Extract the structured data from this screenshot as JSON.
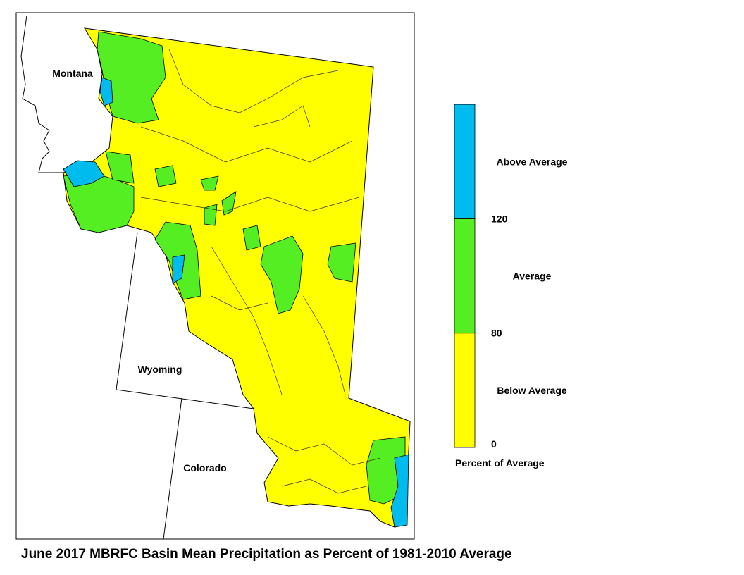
{
  "map": {
    "states": [
      "Montana",
      "Wyoming",
      "Colorado"
    ]
  },
  "legend": {
    "title": "Percent of Average",
    "classes": [
      {
        "name": "Below Average",
        "color": "#ffff00"
      },
      {
        "name": "Average",
        "color": "#55ee22"
      },
      {
        "name": "Above Average",
        "color": "#00bbee"
      }
    ],
    "breaks": [
      0,
      80,
      120
    ]
  },
  "caption": "June 2017 MBRFC Basin Mean Precipitation as Percent of 1981-2010 Average"
}
